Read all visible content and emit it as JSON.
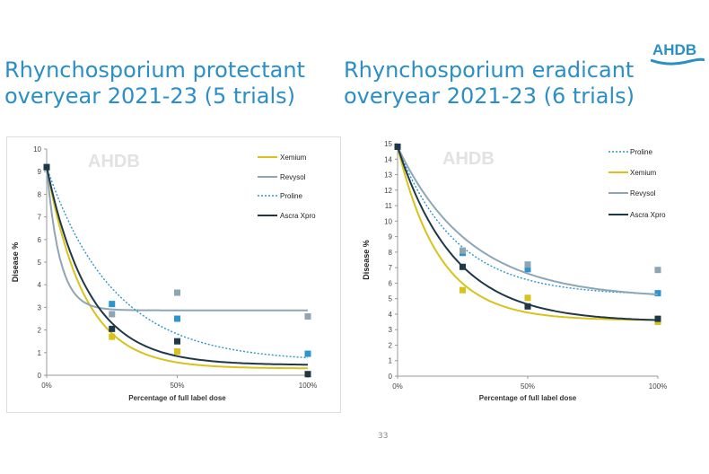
{
  "titles": [
    "Rhynchosporium protectant overyear 2021-23 (5 trials)",
    "Rhynchosporium eradicant overyear 2021-23 (6 trials)"
  ],
  "title_lines": [
    [
      "Rhynchosporium protectant",
      "overyear 2021-23 (5 trials)"
    ],
    [
      "Rhynchosporium eradicant",
      "overyear 2021-23 (6 trials)"
    ]
  ],
  "logo": "AHDB",
  "watermark": "AHDB",
  "page_number": "33",
  "colors": {
    "title": "#2a8fc6",
    "Xemium": "#d9c21a",
    "Revysol": "#8ea6b4",
    "Proline": "#2b95d0",
    "Ascra Xpro": "#1f3848"
  },
  "chart_data": [
    {
      "type": "scatter",
      "title": "Rhynchosporium protectant overyear 2021-23 (5 trials)",
      "xlabel": "Percentage of full label dose",
      "ylabel": "Disease %",
      "x": [
        0,
        25,
        50,
        100
      ],
      "xticks": [
        "0%",
        "50%",
        "100%"
      ],
      "xtick_values": [
        0,
        50,
        100
      ],
      "ylim": [
        0,
        10
      ],
      "yticks": [
        "0",
        "1",
        "2",
        "3",
        "4",
        "5",
        "6",
        "7",
        "8",
        "9",
        "10"
      ],
      "legend_position": "top-right",
      "series": [
        {
          "name": "Xemium",
          "values": [
            9.2,
            1.7,
            1.05,
            0.05
          ],
          "fit": {
            "start": 9.2,
            "plateau": 0.3,
            "rate": 0.07
          },
          "style": "solid"
        },
        {
          "name": "Revysol",
          "values": [
            9.2,
            2.7,
            3.65,
            2.6
          ],
          "fit": {
            "start": 9.2,
            "plateau": 2.87,
            "rate": 0.2
          },
          "style": "solid"
        },
        {
          "name": "Proline",
          "values": [
            9.2,
            3.15,
            2.5,
            0.95
          ],
          "fit": {
            "start": 9.2,
            "plateau": 0.6,
            "rate": 0.039
          },
          "style": "dotted"
        },
        {
          "name": "Ascra Xpro",
          "values": [
            9.2,
            2.05,
            1.5,
            0.05
          ],
          "fit": {
            "start": 9.2,
            "plateau": 0.45,
            "rate": 0.062
          },
          "style": "solid"
        }
      ]
    },
    {
      "type": "scatter",
      "title": "Rhynchosporium eradicant overyear 2021-23 (6 trials)",
      "xlabel": "Percentage of full label dose",
      "ylabel": "Disease %",
      "x": [
        0,
        25,
        50,
        100
      ],
      "xticks": [
        "0%",
        "50%",
        "100%"
      ],
      "xtick_values": [
        0,
        50,
        100
      ],
      "ylim": [
        0,
        15
      ],
      "yticks": [
        "0",
        "1",
        "2",
        "3",
        "4",
        "5",
        "6",
        "7",
        "8",
        "9",
        "10",
        "11",
        "12",
        "13",
        "14",
        "15"
      ],
      "legend_position": "top-right",
      "series": [
        {
          "name": "Proline",
          "values": [
            14.8,
            7.95,
            6.9,
            5.35
          ],
          "fit": {
            "start": 14.8,
            "plateau": 5.2,
            "rate": 0.045
          },
          "style": "dotted"
        },
        {
          "name": "Xemium",
          "values": [
            14.8,
            5.55,
            5.05,
            3.5
          ],
          "fit": {
            "start": 14.8,
            "plateau": 3.6,
            "rate": 0.062
          },
          "style": "solid"
        },
        {
          "name": "Revysol",
          "values": [
            14.8,
            8.1,
            7.2,
            6.85
          ],
          "fit": {
            "start": 14.8,
            "plateau": 5.0,
            "rate": 0.036
          },
          "style": "solid"
        },
        {
          "name": "Ascra Xpro",
          "values": [
            14.8,
            7.05,
            4.5,
            3.7
          ],
          "fit": {
            "start": 14.8,
            "plateau": 3.5,
            "rate": 0.046
          },
          "style": "solid"
        }
      ]
    }
  ]
}
